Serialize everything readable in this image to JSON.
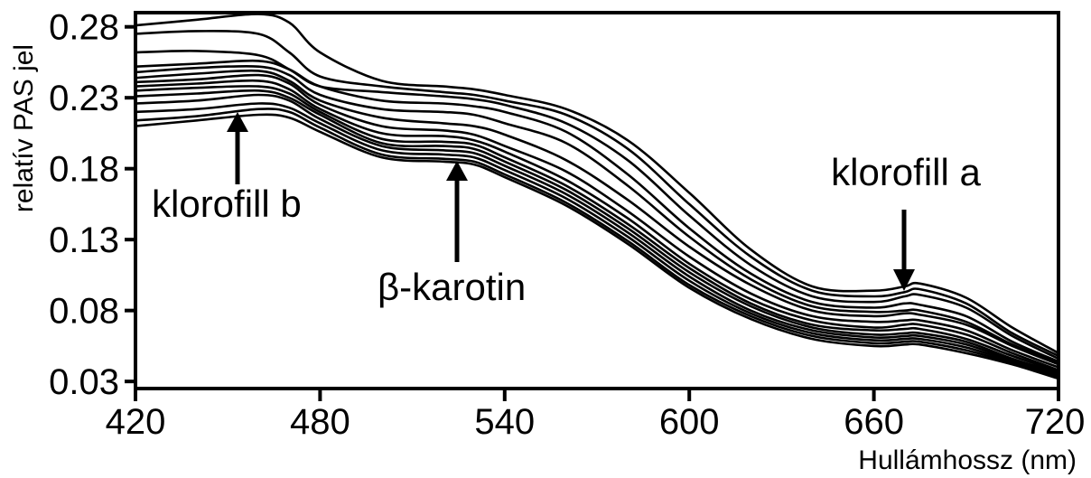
{
  "chart_data": {
    "type": "line",
    "title": "",
    "xlabel": "Hullámhossz (nm)",
    "ylabel": "relatív PAS jel",
    "xlim": [
      420,
      720
    ],
    "ylim": [
      0.025,
      0.29
    ],
    "xticks": [
      420,
      480,
      540,
      600,
      660,
      720
    ],
    "xtick_labels": [
      "420",
      "480",
      "540",
      "600",
      "660",
      "720"
    ],
    "yticks": [
      0.03,
      0.08,
      0.13,
      0.18,
      0.23,
      0.28
    ],
    "ytick_labels": [
      "0.03",
      "0.08",
      "0.13",
      "0.18",
      "0.23",
      "0.28"
    ],
    "grid": false,
    "line_color": "#000000",
    "x": [
      420,
      440,
      460,
      470,
      480,
      500,
      520,
      530,
      540,
      560,
      580,
      600,
      620,
      640,
      660,
      670,
      675,
      690,
      705,
      720
    ],
    "series": [
      {
        "values": [
          0.281,
          0.285,
          0.289,
          0.283,
          0.262,
          0.242,
          0.238,
          0.236,
          0.232,
          0.222,
          0.2,
          0.163,
          0.123,
          0.097,
          0.094,
          0.097,
          0.099,
          0.089,
          0.068,
          0.05
        ]
      },
      {
        "values": [
          0.275,
          0.277,
          0.275,
          0.262,
          0.245,
          0.238,
          0.234,
          0.232,
          0.228,
          0.218,
          0.194,
          0.155,
          0.118,
          0.094,
          0.09,
          0.093,
          0.095,
          0.085,
          0.064,
          0.048
        ]
      },
      {
        "values": [
          0.262,
          0.263,
          0.26,
          0.25,
          0.238,
          0.234,
          0.231,
          0.229,
          0.225,
          0.212,
          0.186,
          0.147,
          0.112,
          0.09,
          0.086,
          0.09,
          0.091,
          0.082,
          0.062,
          0.046
        ]
      },
      {
        "values": [
          0.252,
          0.254,
          0.256,
          0.25,
          0.238,
          0.228,
          0.226,
          0.224,
          0.22,
          0.206,
          0.176,
          0.138,
          0.106,
          0.086,
          0.082,
          0.085,
          0.084,
          0.076,
          0.058,
          0.044
        ]
      },
      {
        "values": [
          0.248,
          0.251,
          0.252,
          0.246,
          0.232,
          0.222,
          0.22,
          0.218,
          0.212,
          0.198,
          0.168,
          0.132,
          0.102,
          0.083,
          0.079,
          0.08,
          0.08,
          0.072,
          0.056,
          0.043
        ]
      },
      {
        "values": [
          0.244,
          0.247,
          0.249,
          0.242,
          0.228,
          0.216,
          0.212,
          0.21,
          0.204,
          0.186,
          0.158,
          0.125,
          0.098,
          0.08,
          0.076,
          0.078,
          0.077,
          0.07,
          0.055,
          0.042
        ]
      },
      {
        "values": [
          0.241,
          0.243,
          0.246,
          0.24,
          0.225,
          0.21,
          0.207,
          0.204,
          0.196,
          0.178,
          0.15,
          0.118,
          0.092,
          0.076,
          0.072,
          0.073,
          0.073,
          0.066,
          0.052,
          0.04
        ]
      },
      {
        "values": [
          0.238,
          0.24,
          0.242,
          0.236,
          0.222,
          0.205,
          0.203,
          0.2,
          0.192,
          0.172,
          0.145,
          0.113,
          0.088,
          0.073,
          0.068,
          0.07,
          0.07,
          0.063,
          0.05,
          0.038
        ]
      },
      {
        "values": [
          0.235,
          0.237,
          0.238,
          0.233,
          0.22,
          0.201,
          0.199,
          0.197,
          0.188,
          0.168,
          0.141,
          0.11,
          0.085,
          0.07,
          0.066,
          0.067,
          0.067,
          0.06,
          0.048,
          0.037
        ]
      },
      {
        "values": [
          0.231,
          0.233,
          0.235,
          0.23,
          0.218,
          0.198,
          0.196,
          0.194,
          0.185,
          0.165,
          0.138,
          0.107,
          0.083,
          0.068,
          0.063,
          0.064,
          0.064,
          0.058,
          0.046,
          0.036
        ]
      },
      {
        "values": [
          0.226,
          0.228,
          0.232,
          0.228,
          0.215,
          0.196,
          0.193,
          0.191,
          0.182,
          0.162,
          0.135,
          0.104,
          0.08,
          0.066,
          0.061,
          0.062,
          0.062,
          0.056,
          0.045,
          0.035
        ]
      },
      {
        "values": [
          0.22,
          0.222,
          0.226,
          0.223,
          0.212,
          0.193,
          0.19,
          0.188,
          0.179,
          0.159,
          0.132,
          0.101,
          0.078,
          0.064,
          0.059,
          0.06,
          0.06,
          0.054,
          0.044,
          0.034
        ]
      },
      {
        "values": [
          0.214,
          0.217,
          0.222,
          0.22,
          0.209,
          0.19,
          0.187,
          0.185,
          0.176,
          0.156,
          0.129,
          0.098,
          0.076,
          0.062,
          0.057,
          0.058,
          0.058,
          0.052,
          0.043,
          0.033
        ]
      },
      {
        "values": [
          0.21,
          0.214,
          0.218,
          0.216,
          0.206,
          0.188,
          0.185,
          0.183,
          0.174,
          0.154,
          0.127,
          0.096,
          0.074,
          0.06,
          0.055,
          0.056,
          0.056,
          0.05,
          0.042,
          0.032
        ]
      }
    ],
    "annotations": [
      {
        "text": "klorofill b",
        "x": 455,
        "y": 0.222
      },
      {
        "text": "β-karotin",
        "x": 528,
        "y": 0.192
      },
      {
        "text": "klorofill a",
        "x": 673,
        "y": 0.1
      }
    ]
  }
}
